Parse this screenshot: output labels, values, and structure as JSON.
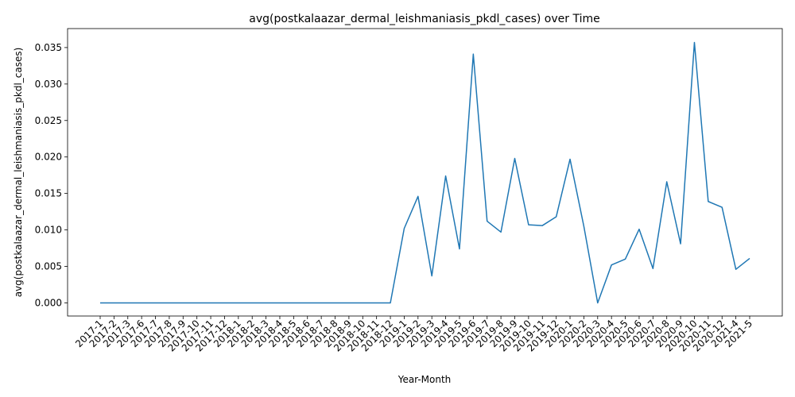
{
  "chart_data": {
    "type": "line",
    "title": "avg(postkalaazar_dermal_leishmaniasis_pkdl_cases) over Time",
    "xlabel": "Year-Month",
    "ylabel": "avg(postkalaazar_dermal_leishmaniasis_pkdl_cases)",
    "ylim": [
      -0.0018,
      0.0376
    ],
    "yticks": [
      "0.000",
      "0.005",
      "0.010",
      "0.015",
      "0.020",
      "0.025",
      "0.030",
      "0.035"
    ],
    "grid": false,
    "legend": "none",
    "line_color": "#1f77b4",
    "categories": [
      "2017-1",
      "2017-2",
      "2017-3",
      "2017-6",
      "2017-7",
      "2017-8",
      "2017-9",
      "2017-10",
      "2017-11",
      "2017-12",
      "2018-1",
      "2018-2",
      "2018-3",
      "2018-4",
      "2018-5",
      "2018-6",
      "2018-7",
      "2018-8",
      "2018-9",
      "2018-10",
      "2018-11",
      "2018-12",
      "2019-1",
      "2019-2",
      "2019-3",
      "2019-4",
      "2019-5",
      "2019-6",
      "2019-7",
      "2019-8",
      "2019-9",
      "2019-10",
      "2019-11",
      "2019-12",
      "2020-1",
      "2020-2",
      "2020-3",
      "2020-4",
      "2020-5",
      "2020-6",
      "2020-7",
      "2020-8",
      "2020-9",
      "2020-10",
      "2020-11",
      "2020-12",
      "2021-4",
      "2021-5"
    ],
    "values": [
      0,
      0,
      0,
      0,
      0,
      0,
      0,
      0,
      0,
      0,
      0,
      0,
      0,
      0,
      0,
      0,
      0,
      0,
      0,
      0,
      0,
      0,
      0.0102,
      0.0146,
      0.0037,
      0.0174,
      0.0074,
      0.0341,
      0.0112,
      0.0097,
      0.0198,
      0.0107,
      0.0106,
      0.0118,
      0.0197,
      0.0105,
      0.0,
      0.0052,
      0.006,
      0.0101,
      0.0047,
      0.0166,
      0.0081,
      0.0357,
      0.0139,
      0.0131,
      0.0046,
      0.0061
    ]
  }
}
